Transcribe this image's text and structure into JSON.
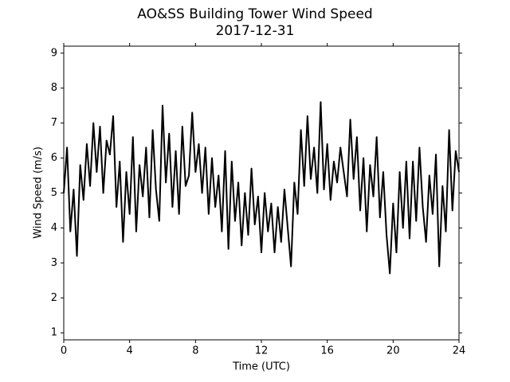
{
  "chart_data": {
    "type": "line",
    "title": "AO&SS Building Tower Wind Speed",
    "subtitle": "2017-12-31",
    "x_label": "Time (UTC)",
    "y_label": "Wind Speed (m/s)",
    "color": "#000000",
    "x": [
      0,
      0.2,
      0.4,
      0.6,
      0.8,
      1,
      1.2,
      1.4,
      1.6,
      1.8,
      2,
      2.2,
      2.4,
      2.6,
      2.8,
      3,
      3.2,
      3.4,
      3.6,
      3.8,
      4,
      4.2,
      4.4,
      4.6,
      4.8,
      5,
      5.2,
      5.4,
      5.6,
      5.8,
      6,
      6.2,
      6.4,
      6.6,
      6.8,
      7,
      7.2,
      7.4,
      7.6,
      7.8,
      8,
      8.2,
      8.4,
      8.6,
      8.8,
      9,
      9.2,
      9.4,
      9.6,
      9.8,
      10,
      10.2,
      10.4,
      10.6,
      10.8,
      11,
      11.2,
      11.4,
      11.6,
      11.8,
      12,
      12.2,
      12.4,
      12.6,
      12.8,
      13,
      13.2,
      13.4,
      13.6,
      13.8,
      14,
      14.2,
      14.4,
      14.6,
      14.8,
      15,
      15.2,
      15.4,
      15.6,
      15.8,
      16,
      16.2,
      16.4,
      16.6,
      16.8,
      17,
      17.2,
      17.4,
      17.6,
      17.8,
      18,
      18.2,
      18.4,
      18.6,
      18.8,
      19,
      19.2,
      19.4,
      19.6,
      19.8,
      20,
      20.2,
      20.4,
      20.6,
      20.8,
      21,
      21.2,
      21.4,
      21.6,
      21.8,
      22,
      22.2,
      22.4,
      22.6,
      22.8,
      23,
      23.2,
      23.4,
      23.6,
      23.8,
      24
    ],
    "values": [
      5.0,
      6.3,
      3.9,
      5.1,
      3.2,
      5.8,
      4.8,
      6.4,
      5.2,
      7.0,
      5.6,
      6.9,
      5.0,
      6.5,
      6.1,
      7.2,
      4.6,
      5.9,
      3.6,
      5.6,
      4.4,
      6.6,
      3.9,
      5.8,
      4.9,
      6.3,
      4.3,
      6.8,
      5.1,
      4.2,
      7.5,
      5.3,
      6.7,
      4.6,
      6.2,
      4.4,
      6.9,
      5.2,
      5.5,
      7.3,
      5.6,
      6.4,
      5.0,
      6.3,
      4.4,
      6.0,
      4.6,
      5.5,
      3.9,
      6.2,
      3.4,
      5.9,
      4.2,
      5.3,
      3.5,
      5.0,
      3.8,
      5.7,
      4.1,
      4.9,
      3.3,
      5.0,
      3.9,
      4.7,
      3.3,
      4.6,
      3.6,
      5.1,
      4.0,
      2.9,
      5.3,
      4.4,
      6.8,
      5.2,
      7.2,
      5.4,
      6.3,
      5.0,
      7.6,
      5.1,
      6.4,
      4.8,
      5.9,
      5.3,
      6.3,
      5.6,
      4.9,
      7.1,
      5.4,
      6.6,
      4.5,
      6.0,
      3.9,
      5.8,
      4.9,
      6.6,
      4.3,
      5.6,
      3.8,
      2.7,
      4.7,
      3.3,
      5.6,
      4.0,
      5.9,
      3.7,
      5.9,
      4.2,
      6.3,
      4.6,
      3.6,
      5.5,
      4.4,
      6.1,
      2.9,
      5.2,
      3.9,
      6.8,
      4.5,
      6.2,
      5.6
    ],
    "xlim": [
      0,
      24
    ],
    "xticks": [
      0,
      4,
      8,
      12,
      16,
      20,
      24
    ],
    "ylim": [
      0.8,
      9.2
    ],
    "yticks": [
      1,
      2,
      3,
      4,
      5,
      6,
      7,
      8,
      9
    ]
  }
}
